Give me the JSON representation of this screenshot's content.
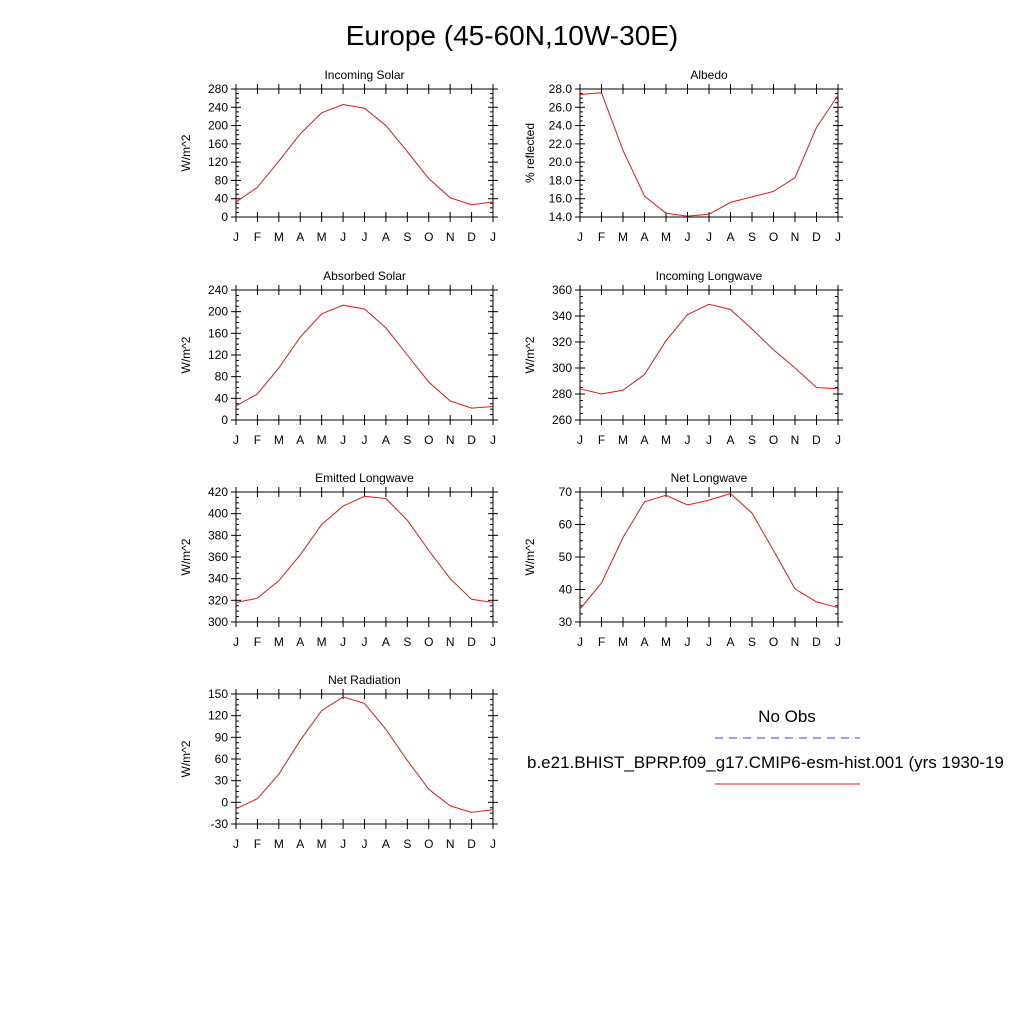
{
  "page_title": "Europe (45-60N,10W-30E)",
  "legend": {
    "obs_label": "No Obs",
    "obs_color": "#3344dd",
    "model_label": "b.e21.BHIST_BPRP.f09_g17.CMIP6-esm-hist.001 (yrs 1930-19",
    "model_color": "#e31a1c"
  },
  "chart_data": [
    {
      "type": "line",
      "title": "Incoming Solar",
      "ylabel": "W/m^2",
      "x": [
        "J",
        "F",
        "M",
        "A",
        "M",
        "J",
        "J",
        "A",
        "S",
        "O",
        "N",
        "D",
        "J"
      ],
      "ylim": [
        0,
        280
      ],
      "yticks": [
        "0",
        "40",
        "80",
        "120",
        "160",
        "200",
        "240",
        "280"
      ],
      "series": [
        {
          "values": [
            33,
            65,
            122,
            182,
            228,
            246,
            238,
            200,
            143,
            84,
            42,
            27,
            33
          ]
        }
      ]
    },
    {
      "type": "line",
      "title": "Albedo",
      "ylabel": "% reflected",
      "x": [
        "J",
        "F",
        "M",
        "A",
        "M",
        "J",
        "J",
        "A",
        "S",
        "O",
        "N",
        "D",
        "J"
      ],
      "ylim": [
        14,
        28
      ],
      "yticks": [
        "14.0",
        "16.0",
        "18.0",
        "20.0",
        "22.0",
        "24.0",
        "26.0",
        "28.0"
      ],
      "series": [
        {
          "values": [
            27.4,
            27.6,
            21.3,
            16.3,
            14.4,
            14.1,
            14.3,
            15.6,
            16.2,
            16.8,
            18.3,
            23.8,
            27.3
          ]
        }
      ]
    },
    {
      "type": "line",
      "title": "Absorbed Solar",
      "ylabel": "W/m^2",
      "x": [
        "J",
        "F",
        "M",
        "A",
        "M",
        "J",
        "J",
        "A",
        "S",
        "O",
        "N",
        "D",
        "J"
      ],
      "ylim": [
        0,
        240
      ],
      "yticks": [
        "0",
        "40",
        "80",
        "120",
        "160",
        "200",
        "240"
      ],
      "series": [
        {
          "values": [
            26,
            48,
            96,
            153,
            196,
            212,
            205,
            170,
            120,
            70,
            35,
            22,
            25
          ]
        }
      ]
    },
    {
      "type": "line",
      "title": "Incoming Longwave",
      "ylabel": "W/m^2",
      "x": [
        "J",
        "F",
        "M",
        "A",
        "M",
        "J",
        "J",
        "A",
        "S",
        "O",
        "N",
        "D",
        "J"
      ],
      "ylim": [
        260,
        360
      ],
      "yticks": [
        "260",
        "280",
        "300",
        "320",
        "340",
        "360"
      ],
      "series": [
        {
          "values": [
            284,
            280,
            283,
            295,
            321,
            341,
            349,
            345,
            330,
            314,
            300,
            285,
            284
          ]
        }
      ]
    },
    {
      "type": "line",
      "title": "Emitted Longwave",
      "ylabel": "W/m^2",
      "x": [
        "J",
        "F",
        "M",
        "A",
        "M",
        "J",
        "J",
        "A",
        "S",
        "O",
        "N",
        "D",
        "J"
      ],
      "ylim": [
        300,
        420
      ],
      "yticks": [
        "300",
        "320",
        "340",
        "360",
        "380",
        "400",
        "420"
      ],
      "series": [
        {
          "values": [
            318,
            322,
            338,
            362,
            390,
            407,
            416,
            414,
            394,
            366,
            340,
            321,
            318
          ]
        }
      ]
    },
    {
      "type": "line",
      "title": "Net Longwave",
      "ylabel": "W/m^2",
      "x": [
        "J",
        "F",
        "M",
        "A",
        "M",
        "J",
        "J",
        "A",
        "S",
        "O",
        "N",
        "D",
        "J"
      ],
      "ylim": [
        30,
        70
      ],
      "yticks": [
        "30",
        "40",
        "50",
        "60",
        "70"
      ],
      "series": [
        {
          "values": [
            34,
            42,
            56,
            67,
            69,
            66,
            67.5,
            69.5,
            63.5,
            52,
            40.2,
            36.2,
            34.4
          ]
        }
      ]
    },
    {
      "type": "line",
      "title": "Net Radiation",
      "ylabel": "W/m^2",
      "x": [
        "J",
        "F",
        "M",
        "A",
        "M",
        "J",
        "J",
        "A",
        "S",
        "O",
        "N",
        "D",
        "J"
      ],
      "ylim": [
        -30,
        150
      ],
      "yticks": [
        "-30",
        "0",
        "30",
        "60",
        "90",
        "120",
        "150"
      ],
      "series": [
        {
          "values": [
            -9,
            5,
            39,
            86,
            127,
            146,
            137,
            101,
            58,
            18,
            -5,
            -14,
            -10
          ]
        }
      ]
    }
  ]
}
